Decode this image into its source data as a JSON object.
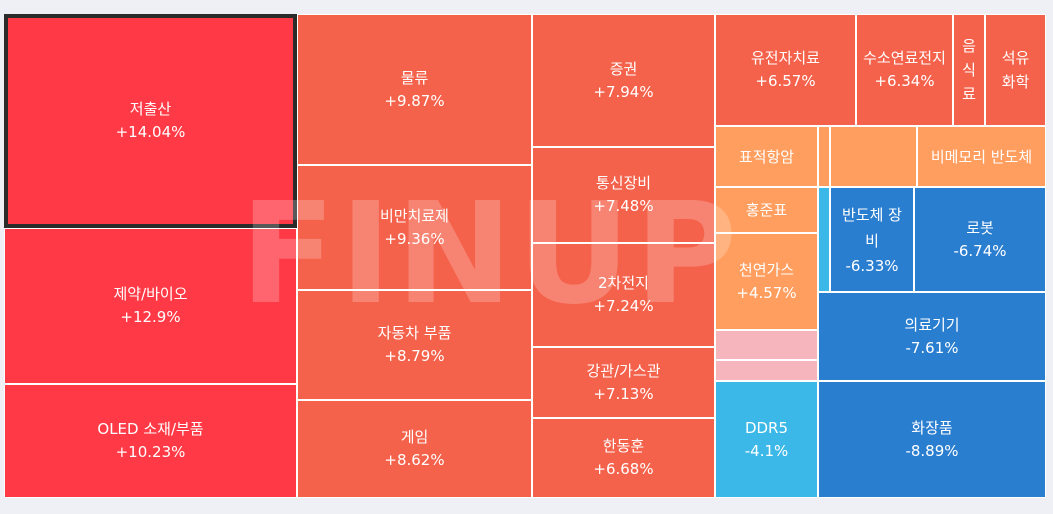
{
  "chart_data": {
    "type": "treemap",
    "selected": "저출산",
    "items": [
      {
        "name": "저출산",
        "change": "+14.04%",
        "color": "#ff3a46"
      },
      {
        "name": "제약/바이오",
        "change": "+12.9%",
        "color": "#ff3a46"
      },
      {
        "name": "OLED 소재/부품",
        "change": "+10.23%",
        "color": "#ff3a46"
      },
      {
        "name": "물류",
        "change": "+9.87%",
        "color": "#f5624b"
      },
      {
        "name": "비만치료제",
        "change": "+9.36%",
        "color": "#f5624b"
      },
      {
        "name": "자동차 부품",
        "change": "+8.79%",
        "color": "#f5624b"
      },
      {
        "name": "게임",
        "change": "+8.62%",
        "color": "#f5624b"
      },
      {
        "name": "증권",
        "change": "+7.94%",
        "color": "#f5624b"
      },
      {
        "name": "통신장비",
        "change": "+7.48%",
        "color": "#f5624b"
      },
      {
        "name": "2차전지",
        "change": "+7.24%",
        "color": "#f5624b"
      },
      {
        "name": "강관/가스관",
        "change": "+7.13%",
        "color": "#f5624b"
      },
      {
        "name": "한동훈",
        "change": "+6.68%",
        "color": "#f5624b"
      },
      {
        "name": "유전자치료",
        "change": "+6.57%",
        "color": "#f5624b"
      },
      {
        "name": "수소연료전지",
        "change": "+6.34%",
        "color": "#f5624b"
      },
      {
        "name": "음식료",
        "change": "",
        "color": "#f5624b"
      },
      {
        "name": "석유화학",
        "change": "",
        "color": "#f5624b"
      },
      {
        "name": "표적항암",
        "change": "",
        "color": "#ff9e5e"
      },
      {
        "name": "",
        "change": "",
        "color": "#ff9e5e"
      },
      {
        "name": "",
        "change": "",
        "color": "#ff9e5e"
      },
      {
        "name": "비메모리 반도체",
        "change": "",
        "color": "#ff9e5e"
      },
      {
        "name": "홍준표",
        "change": "",
        "color": "#ff9e5e"
      },
      {
        "name": "천연가스",
        "change": "+4.57%",
        "color": "#ff9e5e"
      },
      {
        "name": "",
        "change": "",
        "color": "#f6b4bd"
      },
      {
        "name": "",
        "change": "",
        "color": "#f6b4bd"
      },
      {
        "name": "",
        "change": "",
        "color": "#3cb8e8"
      },
      {
        "name": "반도체 장비",
        "change": "-6.33%",
        "color": "#2a7ed0"
      },
      {
        "name": "로봇",
        "change": "-6.74%",
        "color": "#2a7ed0"
      },
      {
        "name": "의료기기",
        "change": "-7.61%",
        "color": "#2a7ed0"
      },
      {
        "name": "DDR5",
        "change": "-4.1%",
        "color": "#3cb8e8"
      },
      {
        "name": "화장품",
        "change": "-8.89%",
        "color": "#2a7ed0"
      }
    ]
  },
  "watermark": "FINUP"
}
